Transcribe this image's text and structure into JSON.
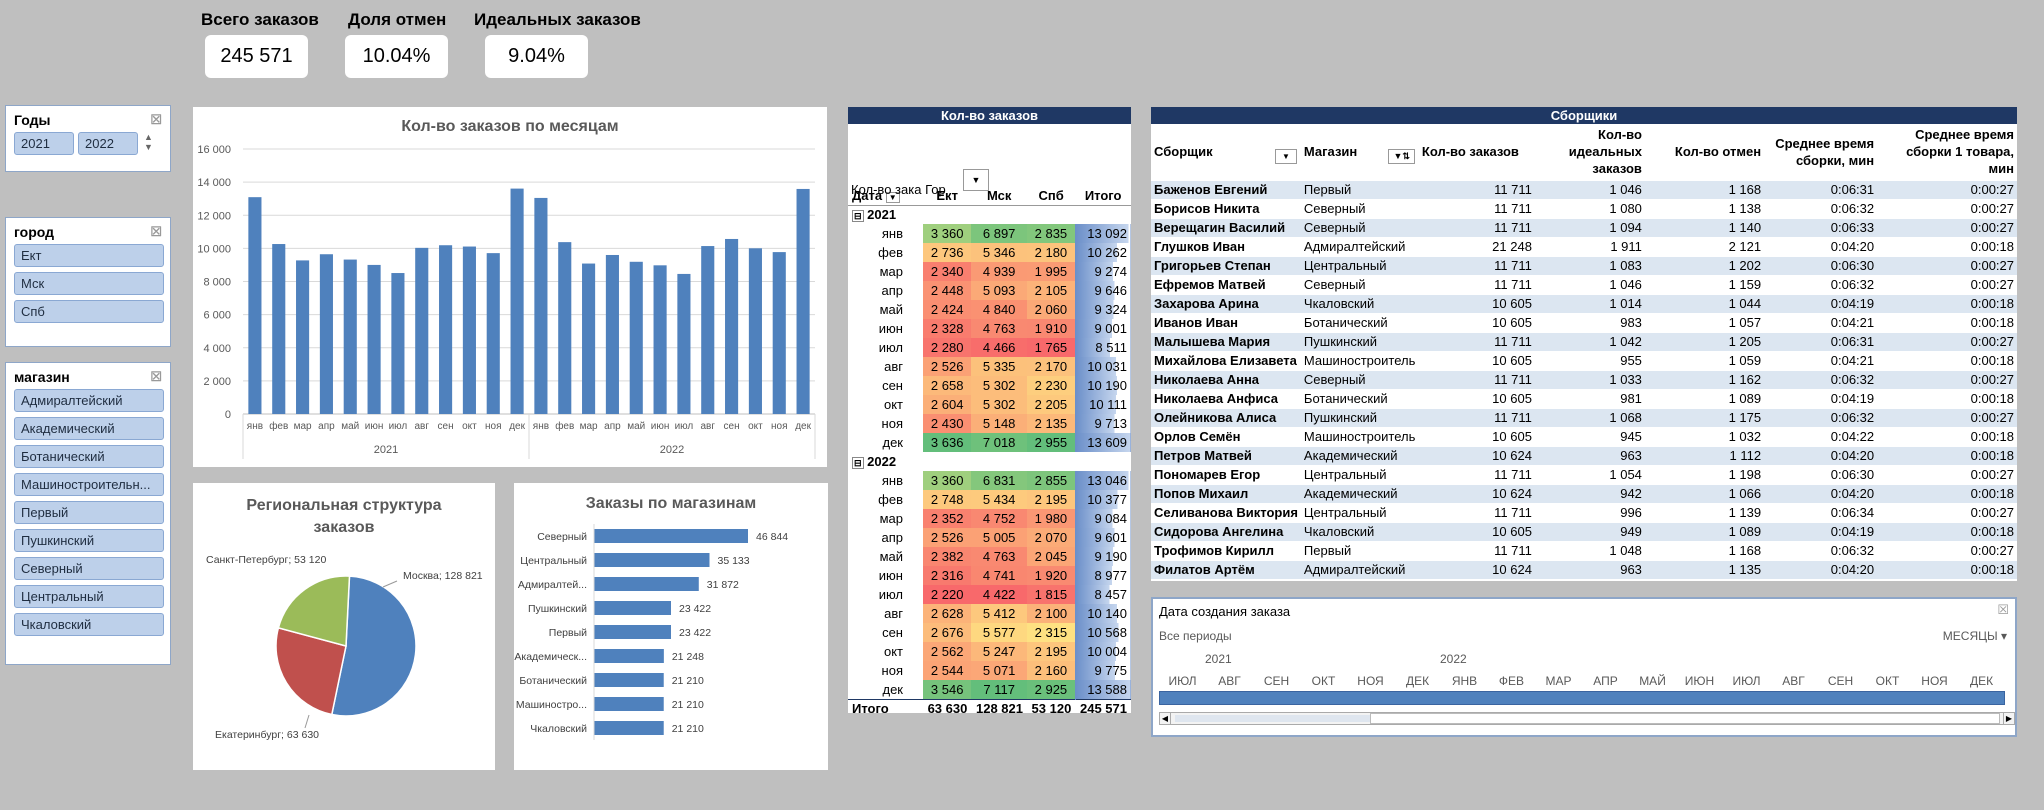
{
  "kpis": {
    "total_label": "Всего заказов",
    "total_value": "245 571",
    "cancel_label": "Доля отмен",
    "cancel_value": "10.04%",
    "ideal_label": "Идеальных заказов",
    "ideal_value": "9.04%"
  },
  "slicers": {
    "years": {
      "title": "Годы",
      "items": [
        "2021",
        "2022"
      ]
    },
    "city": {
      "title": "город",
      "items": [
        "Ект",
        "Мск",
        "Спб"
      ]
    },
    "store": {
      "title": "магазин",
      "items": [
        "Адмиралтейский",
        "Академический",
        "Ботанический",
        "Машиностроительн...",
        "Первый",
        "Пушкинский",
        "Северный",
        "Центральный",
        "Чкаловский"
      ]
    }
  },
  "chart_data": [
    {
      "type": "bar",
      "title": "Кол-во заказов по месяцам",
      "categories": [
        "янв",
        "фев",
        "мар",
        "апр",
        "май",
        "июн",
        "июл",
        "авг",
        "сен",
        "окт",
        "ноя",
        "дек",
        "янв",
        "фев",
        "мар",
        "апр",
        "май",
        "июн",
        "июл",
        "авг",
        "сен",
        "окт",
        "ноя",
        "дек"
      ],
      "groups": [
        "2021",
        "2022"
      ],
      "values": [
        13092,
        10262,
        9274,
        9646,
        9324,
        9001,
        8511,
        10031,
        10190,
        10111,
        9713,
        13609,
        13046,
        10377,
        9084,
        9601,
        9190,
        8977,
        8457,
        10140,
        10568,
        10004,
        9775,
        13588
      ],
      "yticks": [
        "0",
        "2 000",
        "4 000",
        "6 000",
        "8 000",
        "10 000",
        "12 000",
        "14 000",
        "16 000"
      ],
      "ylim": [
        0,
        16000
      ]
    },
    {
      "type": "pie",
      "title": "Региональная структура заказов",
      "labels": [
        "Москва; 128 821",
        "Екатеринбург; 63 630",
        "Санкт-Петербург; 53 120"
      ],
      "values": [
        128821,
        63630,
        53120
      ],
      "colors": [
        "#4f81bd",
        "#c0504d",
        "#9bbb59"
      ]
    },
    {
      "type": "bar",
      "orientation": "horizontal",
      "title": "Заказы по магазинам",
      "categories": [
        "Северный",
        "Центральный",
        "Адмиралтей...",
        "Пушкинский",
        "Первый",
        "Академическ...",
        "Ботанический",
        "Машиностро...",
        "Чкаловский"
      ],
      "values": [
        46844,
        35133,
        31872,
        23422,
        23422,
        21248,
        21210,
        21210,
        21210
      ],
      "labels": [
        "46 844",
        "35 133",
        "31 872",
        "23 422",
        "23 422",
        "21 248",
        "21 210",
        "21 210",
        "21 210"
      ]
    }
  ],
  "pivot": {
    "title": "Кол-во заказов",
    "field_label": "Кол-во зака",
    "col_field": "Гор",
    "date_label": "Дата",
    "headers": [
      "Ект",
      "Мск",
      "Спб",
      "Итого"
    ],
    "years": [
      {
        "year": "2021",
        "rows": [
          {
            "m": "янв",
            "v": [
              "3 360",
              "6 897",
              "2 835",
              "13 092"
            ]
          },
          {
            "m": "фев",
            "v": [
              "2 736",
              "5 346",
              "2 180",
              "10 262"
            ]
          },
          {
            "m": "мар",
            "v": [
              "2 340",
              "4 939",
              "1 995",
              "9 274"
            ]
          },
          {
            "m": "апр",
            "v": [
              "2 448",
              "5 093",
              "2 105",
              "9 646"
            ]
          },
          {
            "m": "май",
            "v": [
              "2 424",
              "4 840",
              "2 060",
              "9 324"
            ]
          },
          {
            "m": "июн",
            "v": [
              "2 328",
              "4 763",
              "1 910",
              "9 001"
            ]
          },
          {
            "m": "июл",
            "v": [
              "2 280",
              "4 466",
              "1 765",
              "8 511"
            ]
          },
          {
            "m": "авг",
            "v": [
              "2 526",
              "5 335",
              "2 170",
              "10 031"
            ]
          },
          {
            "m": "сен",
            "v": [
              "2 658",
              "5 302",
              "2 230",
              "10 190"
            ]
          },
          {
            "m": "окт",
            "v": [
              "2 604",
              "5 302",
              "2 205",
              "10 111"
            ]
          },
          {
            "m": "ноя",
            "v": [
              "2 430",
              "5 148",
              "2 135",
              "9 713"
            ]
          },
          {
            "m": "дек",
            "v": [
              "3 636",
              "7 018",
              "2 955",
              "13 609"
            ]
          }
        ]
      },
      {
        "year": "2022",
        "rows": [
          {
            "m": "янв",
            "v": [
              "3 360",
              "6 831",
              "2 855",
              "13 046"
            ]
          },
          {
            "m": "фев",
            "v": [
              "2 748",
              "5 434",
              "2 195",
              "10 377"
            ]
          },
          {
            "m": "мар",
            "v": [
              "2 352",
              "4 752",
              "1 980",
              "9 084"
            ]
          },
          {
            "m": "апр",
            "v": [
              "2 526",
              "5 005",
              "2 070",
              "9 601"
            ]
          },
          {
            "m": "май",
            "v": [
              "2 382",
              "4 763",
              "2 045",
              "9 190"
            ]
          },
          {
            "m": "июн",
            "v": [
              "2 316",
              "4 741",
              "1 920",
              "8 977"
            ]
          },
          {
            "m": "июл",
            "v": [
              "2 220",
              "4 422",
              "1 815",
              "8 457"
            ]
          },
          {
            "m": "авг",
            "v": [
              "2 628",
              "5 412",
              "2 100",
              "10 140"
            ]
          },
          {
            "m": "сен",
            "v": [
              "2 676",
              "5 577",
              "2 315",
              "10 568"
            ]
          },
          {
            "m": "окт",
            "v": [
              "2 562",
              "5 247",
              "2 195",
              "10 004"
            ]
          },
          {
            "m": "ноя",
            "v": [
              "2 544",
              "5 071",
              "2 160",
              "9 775"
            ]
          },
          {
            "m": "дек",
            "v": [
              "3 546",
              "7 117",
              "2 925",
              "13 588"
            ]
          }
        ]
      }
    ],
    "total": {
      "label": "Итого",
      "v": [
        "63 630",
        "128 821",
        "53 120",
        "245 571"
      ]
    }
  },
  "pickers": {
    "title": "Сборщики",
    "headers": [
      "Сборщик",
      "Магазин",
      "Кол-во заказов",
      "Кол-во идеальных заказов",
      "Кол-во отмен",
      "Среднее время сборки, мин",
      "Среднее время сборки 1 товара, мин"
    ],
    "rows": [
      [
        "Баженов Евгений",
        "Первый",
        "11 711",
        "1 046",
        "1 168",
        "0:06:31",
        "0:00:27"
      ],
      [
        "Борисов Никита",
        "Северный",
        "11 711",
        "1 080",
        "1 138",
        "0:06:32",
        "0:00:27"
      ],
      [
        "Верещагин Василий",
        "Северный",
        "11 711",
        "1 094",
        "1 140",
        "0:06:33",
        "0:00:27"
      ],
      [
        "Глушков Иван",
        "Адмиралтейский",
        "21 248",
        "1 911",
        "2 121",
        "0:04:20",
        "0:00:18"
      ],
      [
        "Григорьев Степан",
        "Центральный",
        "11 711",
        "1 083",
        "1 202",
        "0:06:30",
        "0:00:27"
      ],
      [
        "Ефремов Матвей",
        "Северный",
        "11 711",
        "1 046",
        "1 159",
        "0:06:32",
        "0:00:27"
      ],
      [
        "Захарова Арина",
        "Чкаловский",
        "10 605",
        "1 014",
        "1 044",
        "0:04:19",
        "0:00:18"
      ],
      [
        "Иванов Иван",
        "Ботанический",
        "10 605",
        "983",
        "1 057",
        "0:04:21",
        "0:00:18"
      ],
      [
        "Малышева Мария",
        "Пушкинский",
        "11 711",
        "1 042",
        "1 205",
        "0:06:31",
        "0:00:27"
      ],
      [
        "Михайлова Елизавета",
        "Машиностроитель",
        "10 605",
        "955",
        "1 059",
        "0:04:21",
        "0:00:18"
      ],
      [
        "Николаева Анна",
        "Северный",
        "11 711",
        "1 033",
        "1 162",
        "0:06:32",
        "0:00:27"
      ],
      [
        "Николаева Анфиса",
        "Ботанический",
        "10 605",
        "981",
        "1 089",
        "0:04:19",
        "0:00:18"
      ],
      [
        "Олейникова Алиса",
        "Пушкинский",
        "11 711",
        "1 068",
        "1 175",
        "0:06:32",
        "0:00:27"
      ],
      [
        "Орлов Семён",
        "Машиностроитель",
        "10 605",
        "945",
        "1 032",
        "0:04:22",
        "0:00:18"
      ],
      [
        "Петров Матвей",
        "Академический",
        "10 624",
        "963",
        "1 112",
        "0:04:20",
        "0:00:18"
      ],
      [
        "Пономарев Егор",
        "Центральный",
        "11 711",
        "1 054",
        "1 198",
        "0:06:30",
        "0:00:27"
      ],
      [
        "Попов Михаил",
        "Академический",
        "10 624",
        "942",
        "1 066",
        "0:04:20",
        "0:00:18"
      ],
      [
        "Селиванова Виктория",
        "Центральный",
        "11 711",
        "996",
        "1 139",
        "0:06:34",
        "0:00:27"
      ],
      [
        "Сидорова Ангелина",
        "Чкаловский",
        "10 605",
        "949",
        "1 089",
        "0:04:19",
        "0:00:18"
      ],
      [
        "Трофимов Кирилл",
        "Первый",
        "11 711",
        "1 048",
        "1 168",
        "0:06:32",
        "0:00:27"
      ],
      [
        "Филатов Артём",
        "Адмиралтейский",
        "10 624",
        "963",
        "1 135",
        "0:04:20",
        "0:00:18"
      ]
    ]
  },
  "timeline": {
    "title": "Дата создания заказа",
    "all_periods": "Все периоды",
    "unit": "МЕСЯЦЫ",
    "year_a": "2021",
    "year_b": "2022",
    "months": [
      "ИЮЛ",
      "АВГ",
      "СЕН",
      "ОКТ",
      "НОЯ",
      "ДЕК",
      "ЯНВ",
      "ФЕВ",
      "МАР",
      "АПР",
      "МАЙ",
      "ИЮН",
      "ИЮЛ",
      "АВГ",
      "СЕН",
      "ОКТ",
      "НОЯ",
      "ДЕК"
    ]
  }
}
